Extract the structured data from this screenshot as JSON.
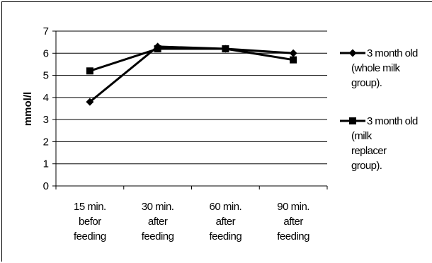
{
  "chart_data": {
    "type": "line",
    "title": "",
    "xlabel": "",
    "ylabel": "mmol/l",
    "ylim": [
      0,
      7
    ],
    "yticks": [
      "0",
      "1",
      "2",
      "3",
      "4",
      "5",
      "6",
      "7"
    ],
    "grid": true,
    "legend_position": "right",
    "categories": [
      [
        "15 min.",
        "befor",
        "feeding"
      ],
      [
        "30 min.",
        "after",
        "feeding"
      ],
      [
        "60 min.",
        "after",
        "feeding"
      ],
      [
        "90 min.",
        "after",
        "feeding"
      ]
    ],
    "series": [
      {
        "name": [
          "3 month old",
          "(whole milk",
          "group)."
        ],
        "marker": "diamond",
        "color": "#000000",
        "values": [
          3.8,
          6.3,
          6.2,
          6.0
        ]
      },
      {
        "name": [
          "3 month old",
          "(milk",
          "replacer",
          "group)."
        ],
        "marker": "square",
        "color": "#000000",
        "values": [
          5.2,
          6.2,
          6.2,
          5.7
        ]
      }
    ]
  }
}
